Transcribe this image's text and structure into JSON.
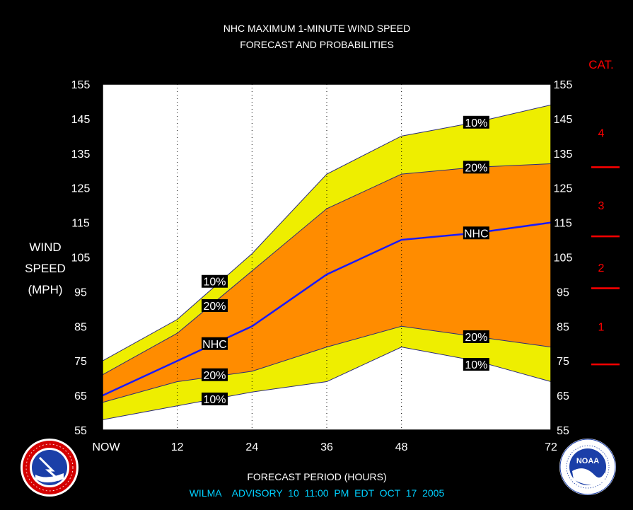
{
  "title_line1": "NHC MAXIMUM 1-MINUTE WIND SPEED",
  "title_line2": "FORECAST AND PROBABILITIES",
  "cat_header": "CAT.",
  "ylabel_lines": [
    "WIND",
    "SPEED",
    "(MPH)"
  ],
  "xlabel": "FORECAST PERIOD (HOURS)",
  "advisory": "WILMA    ADVISORY  10  11:00  PM  EDT  OCT  17  2005",
  "logos": {
    "left": {
      "name": "national-weather-service-logo",
      "text": "NATIONAL WEATHER SERVICE"
    },
    "right": {
      "name": "noaa-logo",
      "text": "NOAA",
      "ring_text": "NATIONAL OCEANIC AND ATMOSPHERIC ADMINISTRATION · U.S. DEPARTMENT OF COMMERCE"
    }
  },
  "colors": {
    "background": "#000000",
    "plot_bg": "#ffffff",
    "outer_band": "#eeee00",
    "inner_band": "#ff8c00",
    "nhc_line": "#1a1aff",
    "label_text": "#ffffff",
    "axis_text": "#ffffff",
    "category": "#ff0000",
    "advisory_text": "#00d0ff"
  },
  "chart_data": {
    "type": "area",
    "title": "NHC MAXIMUM 1-MINUTE WIND SPEED FORECAST AND PROBABILITIES",
    "xlabel": "FORECAST PERIOD (HOURS)",
    "ylabel": "WIND SPEED (MPH)",
    "xlim": [
      0,
      72
    ],
    "ylim": [
      55,
      155
    ],
    "x_ticks": [
      0,
      12,
      24,
      36,
      48,
      72
    ],
    "x_tick_labels": [
      "NOW",
      "12",
      "24",
      "36",
      "48",
      "72"
    ],
    "y_ticks": [
      55,
      65,
      75,
      85,
      95,
      105,
      115,
      125,
      135,
      145,
      155
    ],
    "vertical_dotted_grid_at": [
      12,
      24,
      36,
      48
    ],
    "x": [
      0,
      12,
      24,
      36,
      48,
      60,
      72
    ],
    "series": [
      {
        "name": "10%",
        "values": [
          75,
          87,
          106,
          129,
          140,
          144,
          149
        ]
      },
      {
        "name": "20%",
        "values": [
          71,
          83,
          101,
          119,
          129,
          131,
          132
        ]
      },
      {
        "name": "NHC",
        "values": [
          65,
          75,
          85,
          100,
          110,
          112,
          115
        ]
      },
      {
        "name": "20%",
        "values": [
          63,
          69,
          72,
          79,
          85,
          82,
          79
        ]
      },
      {
        "name": "10%",
        "values": [
          58,
          62,
          66,
          69,
          79,
          75,
          69
        ]
      }
    ],
    "series_labels": [
      {
        "text": "10%",
        "x": 18,
        "y": 98
      },
      {
        "text": "20%",
        "x": 18,
        "y": 91
      },
      {
        "text": "NHC",
        "x": 18,
        "y": 80
      },
      {
        "text": "20%",
        "x": 18,
        "y": 71
      },
      {
        "text": "10%",
        "x": 18,
        "y": 64
      },
      {
        "text": "10%",
        "x": 60,
        "y": 144
      },
      {
        "text": "20%",
        "x": 60,
        "y": 131
      },
      {
        "text": "NHC",
        "x": 60,
        "y": 112
      },
      {
        "text": "20%",
        "x": 60,
        "y": 82
      },
      {
        "text": "10%",
        "x": 60,
        "y": 74
      }
    ],
    "categories": [
      {
        "label": "1",
        "y": 85
      },
      {
        "label": "2",
        "y": 102
      },
      {
        "label": "3",
        "y": 120
      },
      {
        "label": "4",
        "y": 141
      }
    ],
    "category_boundaries": [
      74,
      96,
      111,
      131
    ]
  }
}
